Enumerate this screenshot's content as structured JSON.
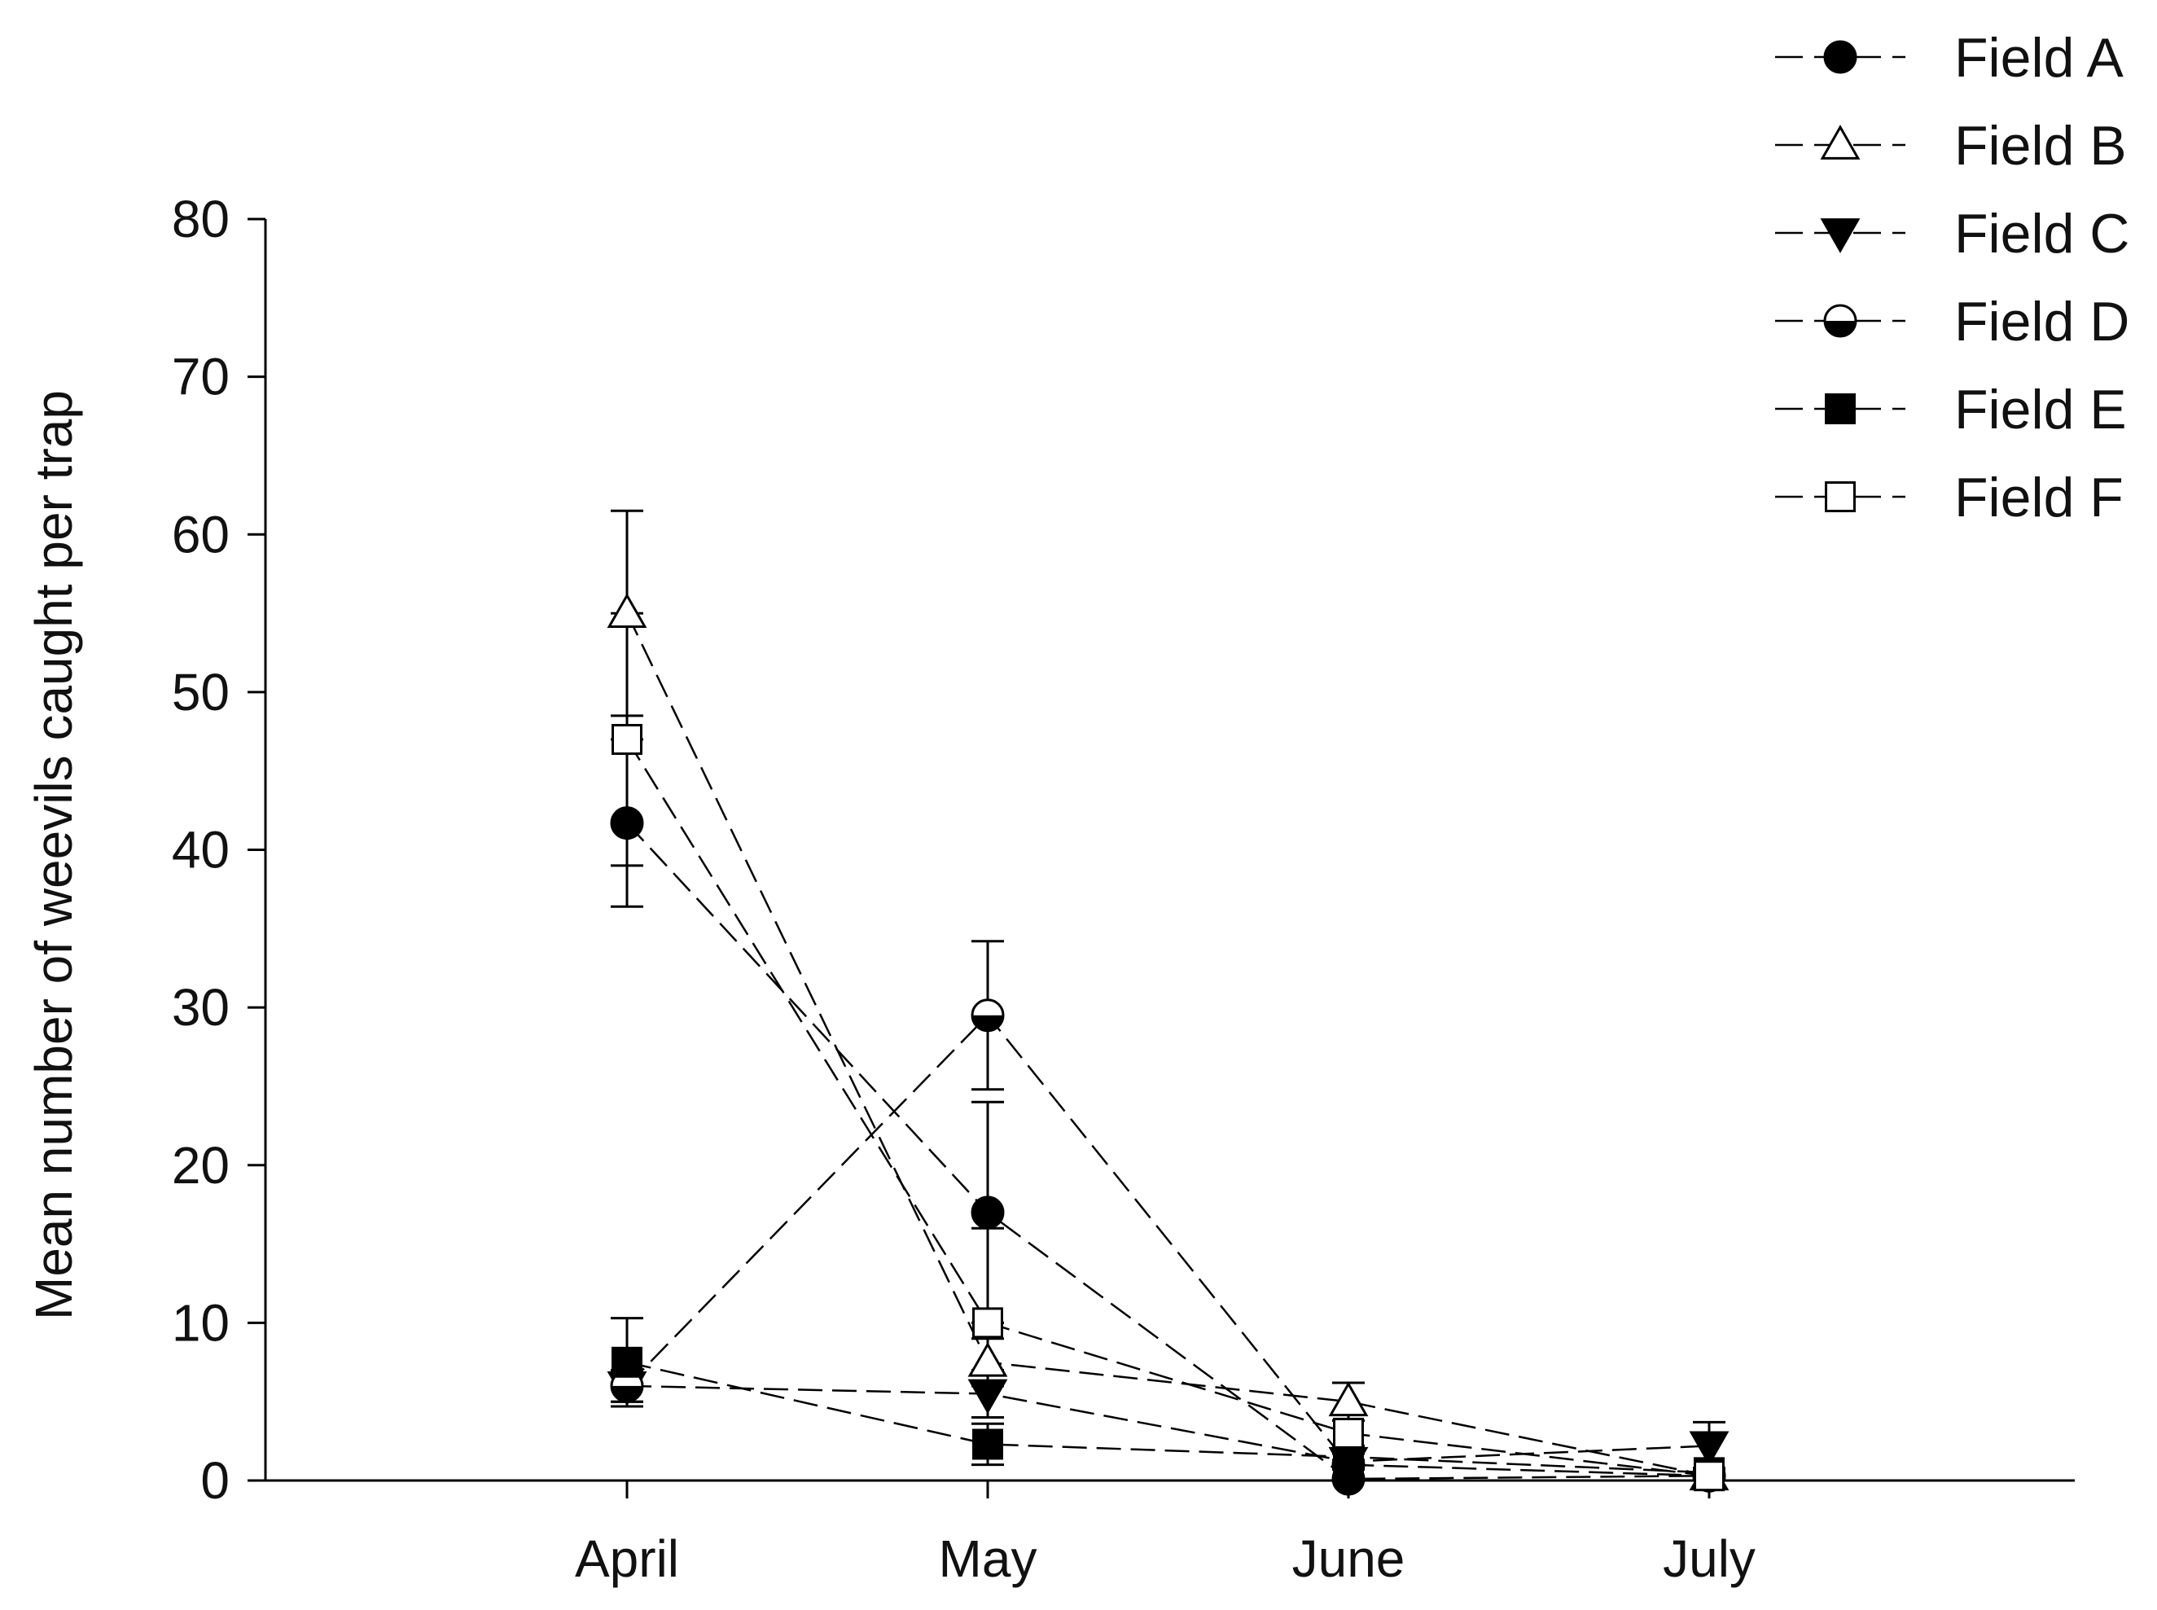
{
  "chart_data": {
    "type": "line",
    "title": "",
    "xlabel": "",
    "ylabel": "Mean number of weevils caught per trap",
    "categories": [
      "April",
      "May",
      "June",
      "July"
    ],
    "ylim": [
      0,
      80
    ],
    "yticks": [
      0,
      10,
      20,
      30,
      40,
      50,
      60,
      70,
      80
    ],
    "grid": false,
    "legend_position": "top-right",
    "line_style": "dashed",
    "series": [
      {
        "name": "Field A",
        "marker": "filled-circle",
        "values": [
          41.7,
          17,
          0.1,
          0.3
        ],
        "error": [
          5.3,
          7.0,
          0.2,
          0.2
        ]
      },
      {
        "name": "Field B",
        "marker": "open-triangle",
        "values": [
          55,
          7.5,
          5,
          0.3
        ],
        "error": [
          6.5,
          1.5,
          1.2,
          0.2
        ]
      },
      {
        "name": "Field C",
        "marker": "filled-triangle-down",
        "values": [
          6,
          5.5,
          1.2,
          2.2
        ],
        "error": [
          1.0,
          1.5,
          0.5,
          1.5
        ]
      },
      {
        "name": "Field D",
        "marker": "half-filled-circle",
        "values": [
          6,
          29.5,
          1,
          0.3
        ],
        "error": [
          1.0,
          4.7,
          0.3,
          0.2
        ]
      },
      {
        "name": "Field E",
        "marker": "filled-square",
        "values": [
          7.5,
          2.3,
          1.5,
          0.5
        ],
        "error": [
          2.8,
          1.3,
          0.4,
          0.3
        ]
      },
      {
        "name": "Field F",
        "marker": "open-square",
        "values": [
          47,
          10,
          3,
          0.3
        ],
        "error": [
          8.0,
          6.0,
          0.8,
          0.2
        ]
      }
    ]
  }
}
